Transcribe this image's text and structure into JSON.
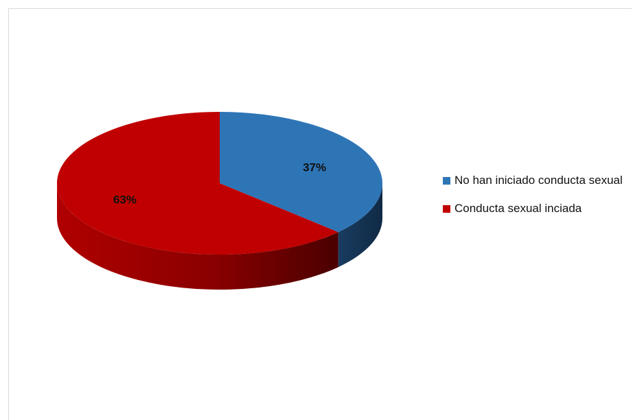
{
  "chart_data": {
    "type": "pie",
    "style": "3d",
    "slices": [
      {
        "label": "No han iniciado conducta sexual",
        "value": 37,
        "display": "37%",
        "color": "#2e75b6",
        "side_color": "#13314f"
      },
      {
        "label": "Conducta sexual inciada",
        "value": 63,
        "display": "63%",
        "color": "#c00000",
        "side_color": "#8a0000"
      }
    ],
    "legend": {
      "position": "right"
    }
  }
}
